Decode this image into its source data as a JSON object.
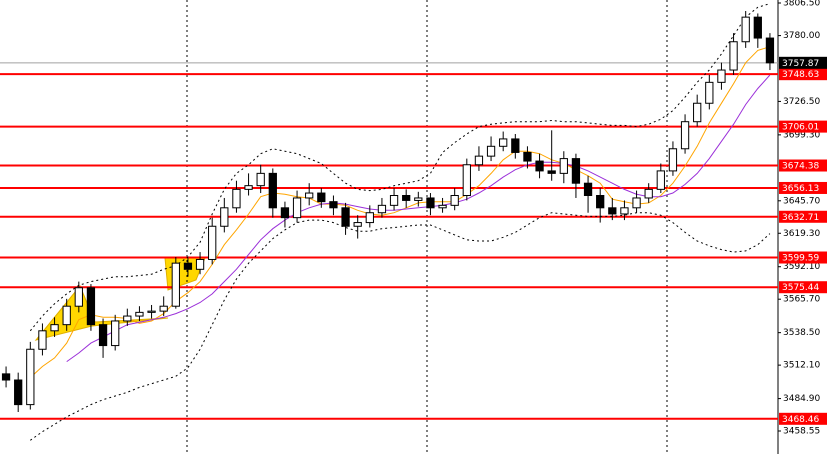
{
  "chart_data": {
    "type": "candlestick",
    "open": [
      3505,
      3500,
      3480,
      3525,
      3540,
      3545,
      3560,
      3575,
      3545,
      3528,
      3548,
      3552,
      3555,
      3556,
      3560,
      3595,
      3590,
      3598,
      3625,
      3640,
      3655,
      3658,
      3668,
      3640,
      3632,
      3648,
      3652,
      3645,
      3640,
      3625,
      3628,
      3636,
      3642,
      3650,
      3646,
      3648,
      3640,
      3642,
      3650,
      3675,
      3682,
      3690,
      3696,
      3685,
      3678,
      3670,
      3668,
      3680,
      3660,
      3650,
      3640,
      3635,
      3640,
      3648,
      3655,
      3670,
      3688,
      3710,
      3725,
      3742,
      3752,
      3775,
      3795,
      3778
    ],
    "high": [
      3511,
      3506,
      3531,
      3546,
      3551,
      3566,
      3580,
      3578,
      3550,
      3553,
      3558,
      3560,
      3561,
      3568,
      3600,
      3599,
      3604,
      3632,
      3648,
      3662,
      3668,
      3675,
      3672,
      3645,
      3654,
      3660,
      3656,
      3650,
      3644,
      3634,
      3642,
      3648,
      3656,
      3655,
      3653,
      3652,
      3648,
      3656,
      3680,
      3690,
      3698,
      3702,
      3700,
      3690,
      3684,
      3703,
      3686,
      3684,
      3666,
      3656,
      3648,
      3646,
      3654,
      3660,
      3676,
      3694,
      3716,
      3732,
      3748,
      3758,
      3782,
      3800,
      3798,
      3782
    ],
    "low": [
      3494,
      3474,
      3476,
      3520,
      3535,
      3540,
      3555,
      3540,
      3518,
      3524,
      3544,
      3548,
      3550,
      3552,
      3558,
      3584,
      3586,
      3594,
      3620,
      3636,
      3650,
      3652,
      3632,
      3624,
      3628,
      3642,
      3640,
      3634,
      3618,
      3615,
      3624,
      3632,
      3638,
      3640,
      3641,
      3634,
      3636,
      3638,
      3646,
      3670,
      3678,
      3686,
      3680,
      3672,
      3664,
      3662,
      3660,
      3648,
      3636,
      3628,
      3630,
      3630,
      3636,
      3644,
      3652,
      3666,
      3684,
      3706,
      3720,
      3736,
      3748,
      3770,
      3770,
      3752
    ],
    "close": [
      3500,
      3480,
      3525,
      3540,
      3545,
      3560,
      3575,
      3545,
      3528,
      3548,
      3552,
      3555,
      3556,
      3560,
      3595,
      3590,
      3598,
      3625,
      3640,
      3655,
      3658,
      3668,
      3640,
      3632,
      3648,
      3652,
      3645,
      3640,
      3625,
      3628,
      3636,
      3642,
      3650,
      3646,
      3648,
      3640,
      3642,
      3650,
      3675,
      3682,
      3690,
      3696,
      3685,
      3678,
      3670,
      3668,
      3680,
      3660,
      3650,
      3640,
      3635,
      3640,
      3648,
      3655,
      3670,
      3688,
      3710,
      3725,
      3742,
      3752,
      3775,
      3795,
      3778,
      3757.87
    ],
    "up_color": "#ffffff",
    "down_color": "#000000",
    "series": [
      {
        "color": "#ffa500",
        "style": "solid",
        "values": [
          null,
          null,
          3502,
          3511,
          3518,
          3530,
          3549,
          3553,
          3551,
          3551,
          3550,
          3546,
          3548,
          3554,
          3564,
          3571,
          3580,
          3594,
          3610,
          3622,
          3635,
          3649,
          3652,
          3651,
          3649,
          3648,
          3643,
          3643,
          3642,
          3638,
          3635,
          3634,
          3636,
          3640,
          3644,
          3645,
          3645,
          3645,
          3651,
          3658,
          3668,
          3679,
          3686,
          3686,
          3684,
          3679,
          3676,
          3671,
          3666,
          3660,
          3647,
          3645,
          3643,
          3644,
          3650,
          3660,
          3674,
          3690,
          3709,
          3725,
          3741,
          3758,
          3768,
          3771
        ]
      },
      {
        "color": "#9b30d9",
        "style": "solid",
        "values": [
          null,
          null,
          null,
          null,
          null,
          3515,
          3522,
          3530,
          3535,
          3540,
          3545,
          3547,
          3549,
          3551,
          3554,
          3558,
          3563,
          3570,
          3580,
          3590,
          3602,
          3614,
          3623,
          3630,
          3636,
          3640,
          3643,
          3644,
          3643,
          3641,
          3639,
          3638,
          3638,
          3639,
          3640,
          3641,
          3642,
          3644,
          3647,
          3652,
          3658,
          3665,
          3671,
          3675,
          3677,
          3677,
          3676,
          3674,
          3670,
          3665,
          3660,
          3655,
          3651,
          3649,
          3649,
          3652,
          3659,
          3668,
          3680,
          3694,
          3708,
          3724,
          3737,
          3748
        ]
      },
      {
        "color": "#000000",
        "style": "dotted",
        "values": [
          null,
          null,
          3540,
          3552,
          3562,
          3570,
          3577,
          3580,
          3582,
          3584,
          3584,
          3585,
          3586,
          3590,
          3593,
          3600,
          3612,
          3635,
          3655,
          3668,
          3675,
          3684,
          3688,
          3686,
          3684,
          3680,
          3676,
          3668,
          3660,
          3655,
          3654,
          3655,
          3658,
          3660,
          3662,
          3668,
          3685,
          3693,
          3700,
          3706,
          3708,
          3709,
          3710,
          3710,
          3710,
          3711,
          3710,
          3710,
          3709,
          3708,
          3707,
          3707,
          3706,
          3708,
          3712,
          3719,
          3730,
          3742,
          3752,
          3765,
          3780,
          3795,
          3803,
          3806
        ]
      },
      {
        "color": "#000000",
        "style": "dotted",
        "values": [
          null,
          null,
          3451,
          3458,
          3464,
          3470,
          3475,
          3480,
          3484,
          3487,
          3490,
          3494,
          3497,
          3500,
          3503,
          3510,
          3525,
          3545,
          3565,
          3582,
          3595,
          3605,
          3615,
          3622,
          3628,
          3630,
          3630,
          3628,
          3624,
          3621,
          3621,
          3623,
          3624,
          3625,
          3626,
          3626,
          3622,
          3618,
          3614,
          3613,
          3613,
          3616,
          3620,
          3626,
          3632,
          3636,
          3635,
          3634,
          3633,
          3633,
          3633,
          3634,
          3636,
          3636,
          3634,
          3628,
          3620,
          3613,
          3609,
          3606,
          3604,
          3605,
          3610,
          3619
        ]
      }
    ],
    "levels": [
      3748.63,
      3706.01,
      3674.38,
      3656.13,
      3632.71,
      3599.59,
      3575.44,
      3468.46
    ],
    "level_color": "#ff0000",
    "current_price": 3757.87,
    "ylim": [
      3439.85,
      3808.94
    ],
    "yticks": [
      {
        "value": 3806.5,
        "label": "3806.50"
      },
      {
        "value": 3780,
        "label": "3780.00"
      },
      {
        "value": 3726.5,
        "label": "3726.50"
      },
      {
        "value": 3699.3,
        "label": "3699.30"
      },
      {
        "value": 3645.7,
        "label": "3645.70"
      },
      {
        "value": 3619.3,
        "label": "3619.30"
      },
      {
        "value": 3592.1,
        "label": "3592.10"
      },
      {
        "value": 3565.7,
        "label": "3565.70"
      },
      {
        "value": 3538.5,
        "label": "3538.50"
      },
      {
        "value": 3512.1,
        "label": "3512.10"
      },
      {
        "value": 3484.9,
        "label": "3484.90"
      },
      3458.55
    ]
  }
}
